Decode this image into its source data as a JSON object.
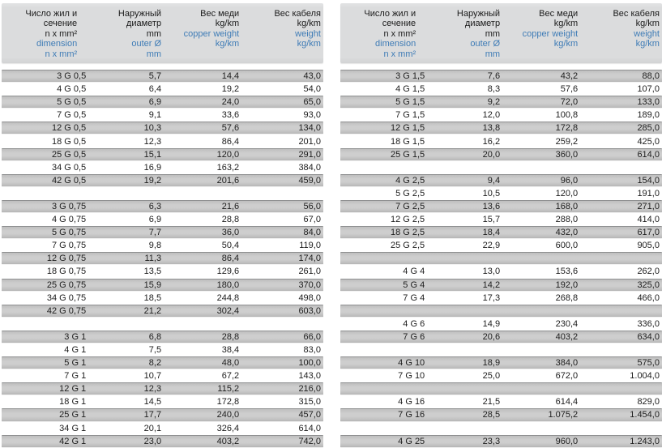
{
  "colors": {
    "accent_blue": "#3f7cb6",
    "header_bg": "#dbdcdd",
    "row_gray": "#c8c8c8",
    "text": "#1c1c1c"
  },
  "header": {
    "columns": [
      {
        "name": "dimension",
        "black": [
          "Число жил и",
          "сечение",
          "n x mm²"
        ],
        "blue": [
          "dimension",
          "n x mm²"
        ]
      },
      {
        "name": "outer-diameter",
        "black": [
          "Наружный",
          "диаметр",
          "mm"
        ],
        "blue": [
          "outer Ø",
          "mm"
        ]
      },
      {
        "name": "copper-weight",
        "black": [
          "Вес меди",
          "kg/km"
        ],
        "blue": [
          "copper weight",
          "kg/km"
        ]
      },
      {
        "name": "cable-weight",
        "black": [
          "Вес кабеля",
          "kg/km"
        ],
        "blue": [
          "weight",
          "kg/km"
        ]
      }
    ]
  },
  "tables": [
    {
      "id": "left",
      "rows": [
        {
          "dimension": "3 G 0,5",
          "outer": "5,7",
          "copper": "14,4",
          "weight": "43,0"
        },
        {
          "dimension": "4 G 0,5",
          "outer": "6,4",
          "copper": "19,2",
          "weight": "54,0"
        },
        {
          "dimension": "5 G 0,5",
          "outer": "6,9",
          "copper": "24,0",
          "weight": "65,0"
        },
        {
          "dimension": "7 G 0,5",
          "outer": "9,1",
          "copper": "33,6",
          "weight": "93,0"
        },
        {
          "dimension": "12 G 0,5",
          "outer": "10,3",
          "copper": "57,6",
          "weight": "134,0"
        },
        {
          "dimension": "18 G 0,5",
          "outer": "12,3",
          "copper": "86,4",
          "weight": "201,0"
        },
        {
          "dimension": "25 G 0,5",
          "outer": "15,1",
          "copper": "120,0",
          "weight": "291,0"
        },
        {
          "dimension": "34 G 0,5",
          "outer": "16,9",
          "copper": "163,2",
          "weight": "384,0"
        },
        {
          "dimension": "42 G 0,5",
          "outer": "19,2",
          "copper": "201,6",
          "weight": "459,0"
        },
        {
          "spacer": true
        },
        {
          "dimension": "3 G 0,75",
          "outer": "6,3",
          "copper": "21,6",
          "weight": "56,0"
        },
        {
          "dimension": "4 G 0,75",
          "outer": "6,9",
          "copper": "28,8",
          "weight": "67,0"
        },
        {
          "dimension": "5 G 0,75",
          "outer": "7,7",
          "copper": "36,0",
          "weight": "84,0"
        },
        {
          "dimension": "7 G 0,75",
          "outer": "9,8",
          "copper": "50,4",
          "weight": "119,0"
        },
        {
          "dimension": "12 G 0,75",
          "outer": "11,3",
          "copper": "86,4",
          "weight": "174,0"
        },
        {
          "dimension": "18 G 0,75",
          "outer": "13,5",
          "copper": "129,6",
          "weight": "261,0"
        },
        {
          "dimension": "25 G 0,75",
          "outer": "15,9",
          "copper": "180,0",
          "weight": "370,0"
        },
        {
          "dimension": "34 G 0,75",
          "outer": "18,5",
          "copper": "244,8",
          "weight": "498,0"
        },
        {
          "dimension": "42 G 0,75",
          "outer": "21,2",
          "copper": "302,4",
          "weight": "603,0"
        },
        {
          "spacer": true
        },
        {
          "dimension": "3 G 1",
          "outer": "6,8",
          "copper": "28,8",
          "weight": "66,0"
        },
        {
          "dimension": "4 G 1",
          "outer": "7,5",
          "copper": "38,4",
          "weight": "83,0"
        },
        {
          "dimension": "5 G 1",
          "outer": "8,2",
          "copper": "48,0",
          "weight": "100,0"
        },
        {
          "dimension": "7 G 1",
          "outer": "10,7",
          "copper": "67,2",
          "weight": "143,0"
        },
        {
          "dimension": "12 G 1",
          "outer": "12,3",
          "copper": "115,2",
          "weight": "216,0"
        },
        {
          "dimension": "18 G 1",
          "outer": "14,5",
          "copper": "172,8",
          "weight": "315,0"
        },
        {
          "dimension": "25 G 1",
          "outer": "17,7",
          "copper": "240,0",
          "weight": "457,0"
        },
        {
          "dimension": "34 G 1",
          "outer": "20,1",
          "copper": "326,4",
          "weight": "614,0"
        },
        {
          "dimension": "42 G 1",
          "outer": "23,0",
          "copper": "403,2",
          "weight": "742,0"
        }
      ]
    },
    {
      "id": "right",
      "rows": [
        {
          "dimension": "3 G 1,5",
          "outer": "7,6",
          "copper": "43,2",
          "weight": "88,0"
        },
        {
          "dimension": "4 G 1,5",
          "outer": "8,3",
          "copper": "57,6",
          "weight": "107,0"
        },
        {
          "dimension": "5 G 1,5",
          "outer": "9,2",
          "copper": "72,0",
          "weight": "133,0"
        },
        {
          "dimension": "7 G 1,5",
          "outer": "12,0",
          "copper": "100,8",
          "weight": "189,0"
        },
        {
          "dimension": "12 G 1,5",
          "outer": "13,8",
          "copper": "172,8",
          "weight": "285,0"
        },
        {
          "dimension": "18 G 1,5",
          "outer": "16,2",
          "copper": "259,2",
          "weight": "425,0"
        },
        {
          "dimension": "25 G 1,5",
          "outer": "20,0",
          "copper": "360,0",
          "weight": "614,0"
        },
        {
          "spacer": true
        },
        {
          "dimension": "4 G 2,5",
          "outer": "9,4",
          "copper": "96,0",
          "weight": "154,0"
        },
        {
          "dimension": "5 G 2,5",
          "outer": "10,5",
          "copper": "120,0",
          "weight": "191,0"
        },
        {
          "dimension": "7 G 2,5",
          "outer": "13,6",
          "copper": "168,0",
          "weight": "271,0"
        },
        {
          "dimension": "12 G 2,5",
          "outer": "15,7",
          "copper": "288,0",
          "weight": "414,0"
        },
        {
          "dimension": "18 G 2,5",
          "outer": "18,4",
          "copper": "432,0",
          "weight": "617,0"
        },
        {
          "dimension": "25 G 2,5",
          "outer": "22,9",
          "copper": "600,0",
          "weight": "905,0"
        },
        {
          "spacer": true
        },
        {
          "dimension": "4 G 4",
          "outer": "13,0",
          "copper": "153,6",
          "weight": "262,0"
        },
        {
          "dimension": "5 G 4",
          "outer": "14,2",
          "copper": "192,0",
          "weight": "325,0"
        },
        {
          "dimension": "7 G 4",
          "outer": "17,3",
          "copper": "268,8",
          "weight": "466,0"
        },
        {
          "spacer": true
        },
        {
          "dimension": "4 G 6",
          "outer": "14,9",
          "copper": "230,4",
          "weight": "336,0"
        },
        {
          "dimension": "7 G 6",
          "outer": "20,6",
          "copper": "403,2",
          "weight": "634,0"
        },
        {
          "spacer": true
        },
        {
          "dimension": "4 G 10",
          "outer": "18,9",
          "copper": "384,0",
          "weight": "575,0"
        },
        {
          "dimension": "7 G 10",
          "outer": "25,0",
          "copper": "672,0",
          "weight": "1.004,0"
        },
        {
          "spacer": true
        },
        {
          "dimension": "4 G 16",
          "outer": "21,5",
          "copper": "614,4",
          "weight": "829,0"
        },
        {
          "dimension": "7 G 16",
          "outer": "28,5",
          "copper": "1.075,2",
          "weight": "1.454,0"
        },
        {
          "spacer": true
        },
        {
          "dimension": "4 G 25",
          "outer": "23,3",
          "copper": "960,0",
          "weight": "1.243,0"
        }
      ]
    }
  ]
}
